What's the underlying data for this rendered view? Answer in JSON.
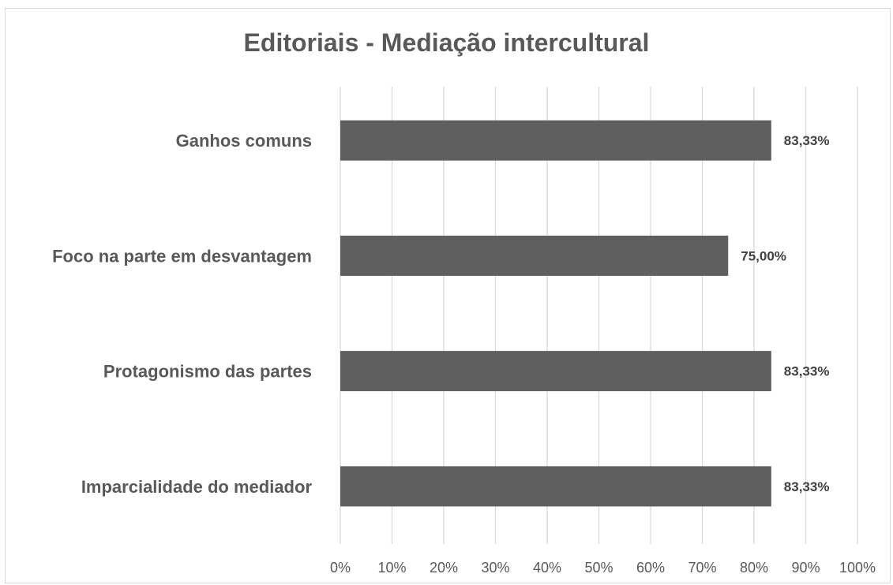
{
  "chart_data": {
    "type": "bar",
    "orientation": "horizontal",
    "title": "Editoriais - Mediação intercultural",
    "xlabel": "",
    "ylabel": "",
    "categories": [
      "Ganhos comuns",
      "Foco na parte em desvantagem",
      "Protagonismo das partes",
      "Imparcialidade  do mediador"
    ],
    "values": [
      83.33,
      75.0,
      83.33,
      83.33
    ],
    "data_labels": [
      "83,33%",
      "75,00%",
      "83,33%",
      "83,33%"
    ],
    "xlim": [
      0,
      100
    ],
    "x_ticks": [
      0,
      10,
      20,
      30,
      40,
      50,
      60,
      70,
      80,
      90,
      100
    ],
    "x_tick_labels": [
      "0%",
      "10%",
      "20%",
      "30%",
      "40%",
      "50%",
      "60%",
      "70%",
      "80%",
      "90%",
      "100%"
    ],
    "grid": true,
    "legend": "none",
    "bar_color": "#5f5f5f",
    "grid_color": "#d9d9d9"
  }
}
